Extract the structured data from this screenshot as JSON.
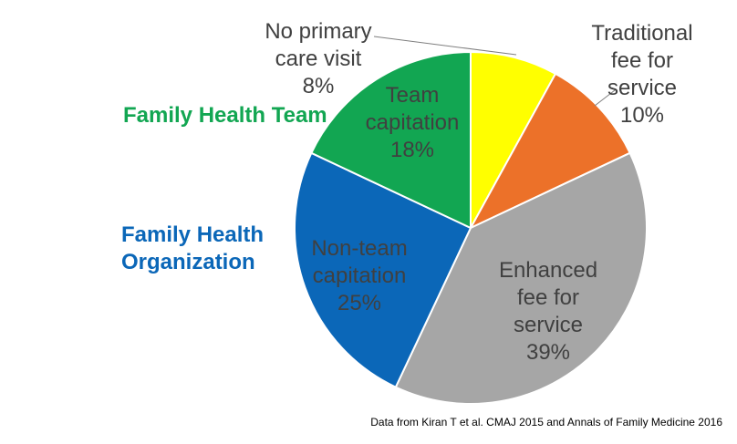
{
  "chart_data": {
    "type": "pie",
    "title": "",
    "start_angle_deg": 0,
    "direction": "clockwise",
    "legend_position": "none",
    "slices": [
      {
        "id": "no-primary-care-visit",
        "label": "No primary care visit",
        "value": 8,
        "color": "#FFFF00"
      },
      {
        "id": "traditional-fee-for-service",
        "label": "Traditional fee for service",
        "value": 10,
        "color": "#EC7129"
      },
      {
        "id": "enhanced-fee-for-service",
        "label": "Enhanced fee for service",
        "value": 39,
        "color": "#A6A6A6"
      },
      {
        "id": "non-team-capitation",
        "label": "Non-team capitation",
        "value": 25,
        "color": "#0B67B8"
      },
      {
        "id": "team-capitation",
        "label": "Team capitation",
        "value": 18,
        "color": "#12A652"
      }
    ]
  },
  "labels": {
    "no_primary_care_visit": "No primary\ncare visit\n8%",
    "traditional_fee_for_service": "Traditional\nfee for\nservice\n10%",
    "team_capitation": "Team\ncapitation\n18%",
    "non_team_capitation": "Non-team\ncapitation\n25%",
    "enhanced_fee_for_service": "Enhanced\nfee for\nservice\n39%",
    "group_family_health_team": "Family Health Team",
    "group_family_health_organization": "Family Health\nOrganization"
  },
  "colors": {
    "slice_text": "#404040",
    "family_health_team": "#12A652",
    "family_health_organization": "#0B67B8",
    "leader_line": "#7F7F7F",
    "slice_border": "#FFFFFF"
  },
  "footer": {
    "source_note": "Data from Kiran T et al. CMAJ 2015 and Annals of Family Medicine 2016"
  }
}
